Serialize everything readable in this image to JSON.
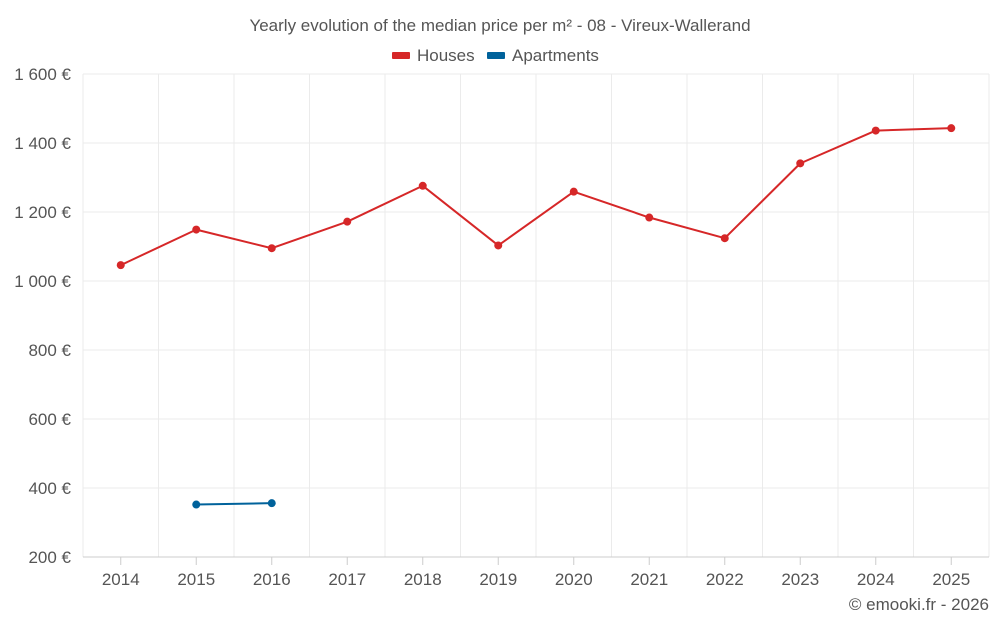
{
  "chart_data": {
    "type": "line",
    "title": "Yearly evolution of the median price per m² - 08 - Vireux-Wallerand",
    "categories": [
      "2014",
      "2015",
      "2016",
      "2017",
      "2018",
      "2019",
      "2020",
      "2021",
      "2022",
      "2023",
      "2024",
      "2025"
    ],
    "series": [
      {
        "name": "Houses",
        "color": "#d62728",
        "values": [
          1046,
          1149,
          1095,
          1172,
          1276,
          1103,
          1259,
          1184,
          1124,
          1341,
          1436,
          1443
        ]
      },
      {
        "name": "Apartments",
        "color": "#00629b",
        "values": [
          null,
          352,
          356,
          null,
          null,
          null,
          null,
          null,
          null,
          null,
          null,
          null
        ]
      }
    ],
    "y_ticks": [
      200,
      400,
      600,
      800,
      1000,
      1200,
      1400,
      1600
    ],
    "y_tick_labels": [
      "200 €",
      "400 €",
      "600 €",
      "800 €",
      "1 000 €",
      "1 200 €",
      "1 400 €",
      "1 600 €"
    ],
    "ylim": [
      200,
      1600
    ],
    "xlabel": "",
    "ylabel": "",
    "grid": true,
    "legend_position": "top-center"
  },
  "credit": "© emooki.fr - 2026"
}
